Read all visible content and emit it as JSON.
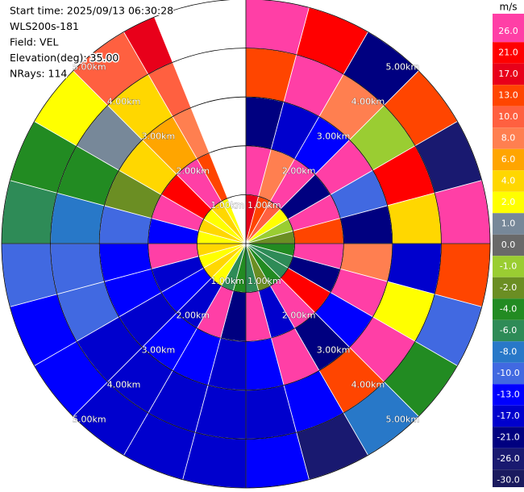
{
  "chart_data": {
    "type": "ppi",
    "info_lines": [
      "Start time: 2025/09/13 06:30:28",
      "WLS200s-181",
      "Field: VEL",
      "Elevation(deg): 35.00",
      "NRays: 114"
    ],
    "azimuth_edges": [
      0,
      15,
      30,
      45,
      60,
      75,
      90,
      105,
      120,
      135,
      150,
      165,
      180,
      195,
      210,
      225,
      240,
      255,
      270,
      285,
      300,
      315,
      330,
      338
    ],
    "range_edges": [
      0,
      1,
      2,
      3,
      4,
      5
    ],
    "values": [
      [
        17,
        26,
        -21,
        13,
        26
      ],
      [
        13,
        8,
        -17,
        26,
        21
      ],
      [
        10,
        26,
        -13,
        8,
        -21
      ],
      [
        2,
        -21,
        26,
        -1,
        13
      ],
      [
        -1,
        26,
        -10,
        21,
        -26
      ],
      [
        -2,
        13,
        -21,
        4,
        26
      ],
      [
        -4,
        26,
        8,
        -17,
        13
      ],
      [
        -6,
        -21,
        26,
        2,
        -10
      ],
      [
        -6,
        21,
        -13,
        26,
        -4
      ],
      [
        -4,
        26,
        -21,
        13,
        -8
      ],
      [
        -2,
        -17,
        26,
        -13,
        -26
      ],
      [
        -6,
        26,
        -13,
        -17,
        -13
      ],
      [
        -4,
        -21,
        -17,
        -17,
        -17
      ],
      [
        -6,
        26,
        -13,
        -17,
        -17
      ],
      [
        2,
        -17,
        -13,
        -17,
        -17
      ],
      [
        4,
        -13,
        -17,
        -17,
        -13
      ],
      [
        2,
        -17,
        -13,
        -10,
        -13
      ],
      [
        4,
        26,
        -13,
        -10,
        -10
      ],
      [
        2,
        -13,
        -10,
        -8,
        -6
      ],
      [
        4,
        26,
        -2,
        -4,
        -4
      ],
      [
        2,
        21,
        4,
        1,
        2
      ],
      [
        4,
        26,
        6,
        4,
        10
      ],
      [
        2,
        13,
        8,
        10,
        17
      ]
    ],
    "ring_labels": [
      {
        "value": 1,
        "label": "1.00km"
      },
      {
        "value": 2,
        "label": "2.00km"
      },
      {
        "value": 3,
        "label": "3.00km"
      },
      {
        "value": 4,
        "label": "4.00km"
      },
      {
        "value": 5,
        "label": "5.00km"
      }
    ],
    "colorbar": {
      "unit": "m/s",
      "ticks": [
        {
          "value": 26,
          "label": "26.0"
        },
        {
          "value": 21,
          "label": "21.0"
        },
        {
          "value": 17,
          "label": "17.0"
        },
        {
          "value": 13,
          "label": "13.0"
        },
        {
          "value": 10,
          "label": "10.0"
        },
        {
          "value": 8,
          "label": "8.0"
        },
        {
          "value": 6,
          "label": "6.0"
        },
        {
          "value": 4,
          "label": "4.0"
        },
        {
          "value": 2,
          "label": "2.0"
        },
        {
          "value": 1,
          "label": "1.0"
        },
        {
          "value": 0,
          "label": "0.0"
        },
        {
          "value": -1,
          "label": "-1.0"
        },
        {
          "value": -2,
          "label": "-2.0"
        },
        {
          "value": -4,
          "label": "-4.0"
        },
        {
          "value": -6,
          "label": "-6.0"
        },
        {
          "value": -8,
          "label": "-8.0"
        },
        {
          "value": -10,
          "label": "-10.0"
        },
        {
          "value": -13,
          "label": "-13.0"
        },
        {
          "value": -17,
          "label": "-17.0"
        },
        {
          "value": -21,
          "label": "-21.0"
        },
        {
          "value": -26,
          "label": "-26.0"
        },
        {
          "value": -30,
          "label": "-30.0"
        }
      ],
      "colors": [
        "#ff3fa6",
        "#ff0000",
        "#e8001a",
        "#ff4500",
        "#ff6040",
        "#ff7f50",
        "#ffa500",
        "#ffd700",
        "#ffff00",
        "#778899",
        "#696969",
        "#9acd32",
        "#6b8e23",
        "#228b22",
        "#2e8b57",
        "#2878c8",
        "#4169e1",
        "#0000ff",
        "#0000cd",
        "#000080",
        "#191970",
        "#1a1a5e"
      ]
    }
  }
}
